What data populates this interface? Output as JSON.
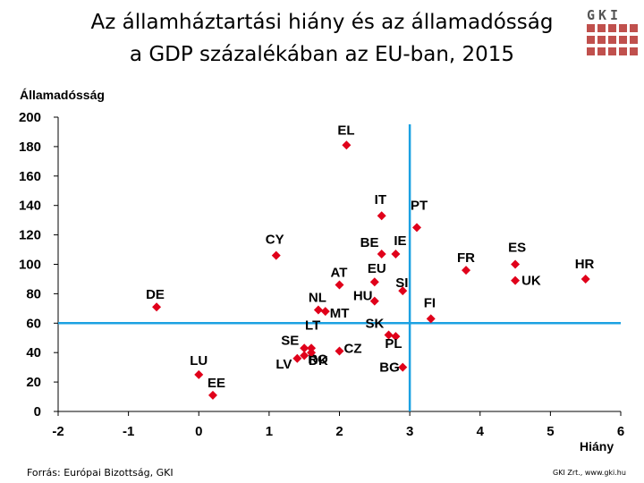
{
  "title_line1": "Az államháztartási hiány és az államadósság",
  "title_line2": "a GDP százalékában az EU-ban, 2015",
  "logo_text": "GKI",
  "source": "Forrás: Európai Bizottság, GKI",
  "copyright": "GKI Zrt., www.gki.hu",
  "colors": {
    "marker": "#e0001a",
    "reference_line": "#1ba1e2",
    "axis": "#000000"
  },
  "chart_data": {
    "type": "scatter",
    "title": "Az államháztartási hiány és az államadósság a GDP százalékában az EU-ban, 2015",
    "xlabel": "Hiány",
    "ylabel": "Államadósság",
    "xlim": [
      -2,
      6
    ],
    "ylim": [
      0,
      200
    ],
    "xticks": [
      -2,
      -1,
      0,
      1,
      2,
      3,
      4,
      5,
      6
    ],
    "yticks": [
      0,
      20,
      40,
      60,
      80,
      100,
      120,
      140,
      160,
      180,
      200
    ],
    "reference_lines": {
      "x": 3,
      "y": 60
    },
    "grid": false,
    "points": [
      {
        "label": "EL",
        "x": 2.1,
        "y": 181
      },
      {
        "label": "IT",
        "x": 2.6,
        "y": 133
      },
      {
        "label": "PT",
        "x": 3.1,
        "y": 125
      },
      {
        "label": "CY",
        "x": 1.1,
        "y": 106
      },
      {
        "label": "BE",
        "x": 2.6,
        "y": 107
      },
      {
        "label": "IE",
        "x": 2.8,
        "y": 107
      },
      {
        "label": "FR",
        "x": 3.8,
        "y": 96
      },
      {
        "label": "ES",
        "x": 4.5,
        "y": 100
      },
      {
        "label": "UK",
        "x": 4.5,
        "y": 89
      },
      {
        "label": "HR",
        "x": 5.5,
        "y": 90
      },
      {
        "label": "AT",
        "x": 2.0,
        "y": 86
      },
      {
        "label": "EU",
        "x": 2.5,
        "y": 88
      },
      {
        "label": "SI",
        "x": 2.9,
        "y": 82
      },
      {
        "label": "HU",
        "x": 2.5,
        "y": 75
      },
      {
        "label": "DE",
        "x": -0.6,
        "y": 71
      },
      {
        "label": "NL",
        "x": 1.7,
        "y": 69
      },
      {
        "label": "MT",
        "x": 1.8,
        "y": 68
      },
      {
        "label": "FI",
        "x": 3.3,
        "y": 63
      },
      {
        "label": "LT",
        "x": 1.6,
        "y": 43
      },
      {
        "label": "SK",
        "x": 2.7,
        "y": 52
      },
      {
        "label": "PL",
        "x": 2.8,
        "y": 51
      },
      {
        "label": "SE",
        "x": 1.5,
        "y": 43
      },
      {
        "label": "RO",
        "x": 1.5,
        "y": 38
      },
      {
        "label": "CZ",
        "x": 2.0,
        "y": 41
      },
      {
        "label": "LV",
        "x": 1.4,
        "y": 36
      },
      {
        "label": "DK",
        "x": 1.6,
        "y": 40
      },
      {
        "label": "BG",
        "x": 2.9,
        "y": 30
      },
      {
        "label": "LU",
        "x": 0.0,
        "y": 25
      },
      {
        "label": "EE",
        "x": 0.2,
        "y": 11
      }
    ]
  }
}
